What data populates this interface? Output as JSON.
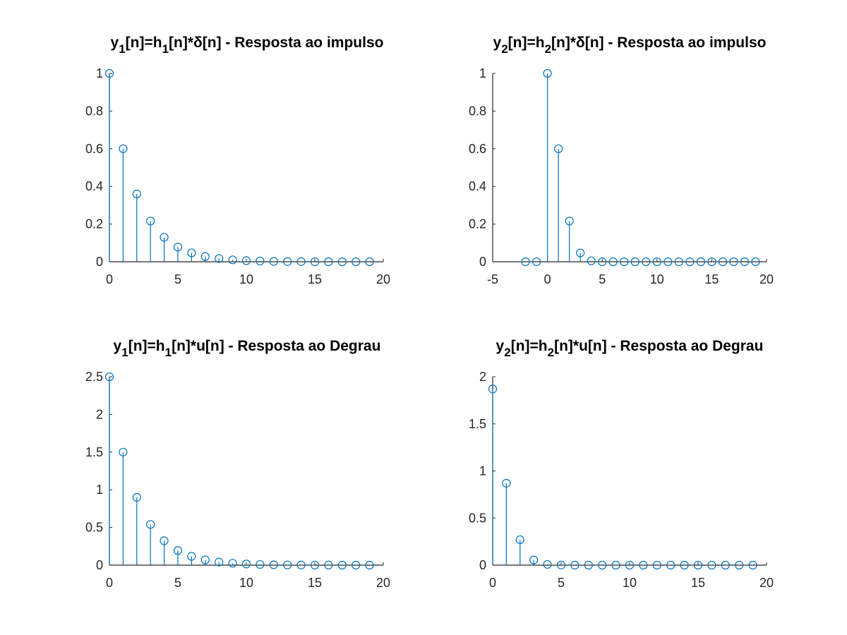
{
  "figure": {
    "background": "#ffffff",
    "stem_color": "#0072bd"
  },
  "chart_data": [
    {
      "type": "stem",
      "title_parts": [
        {
          "t": "y",
          "sub": false
        },
        {
          "t": "1",
          "sub": true
        },
        {
          "t": "[n]=h",
          "sub": false
        },
        {
          "t": "1",
          "sub": true
        },
        {
          "t": "[n]*δ[n] - Resposta ao impulso",
          "sub": false
        }
      ],
      "xlim": [
        0,
        20
      ],
      "ylim": [
        0,
        1
      ],
      "xticks": [
        0,
        5,
        10,
        15,
        20
      ],
      "yticks": [
        0,
        0.2,
        0.4,
        0.6,
        0.8,
        1
      ],
      "ytick_labels": [
        "0",
        "0.2",
        "0.4",
        "0.6",
        "0.8",
        "1"
      ],
      "x": [
        0,
        1,
        2,
        3,
        4,
        5,
        6,
        7,
        8,
        9,
        10,
        11,
        12,
        13,
        14,
        15,
        16,
        17,
        18,
        19
      ],
      "y": [
        1,
        0.6,
        0.36,
        0.216,
        0.13,
        0.078,
        0.047,
        0.028,
        0.017,
        0.01,
        0.006,
        0.004,
        0.002,
        0.001,
        0.001,
        0,
        0,
        0,
        0,
        0
      ]
    },
    {
      "type": "stem",
      "title_parts": [
        {
          "t": "y",
          "sub": false
        },
        {
          "t": "2",
          "sub": true
        },
        {
          "t": "[n]=h",
          "sub": false
        },
        {
          "t": "2",
          "sub": true
        },
        {
          "t": "[n]*δ[n] - Resposta ao impulso",
          "sub": false
        }
      ],
      "xlim": [
        -5,
        20
      ],
      "ylim": [
        0,
        1
      ],
      "xticks": [
        -5,
        0,
        5,
        10,
        15,
        20
      ],
      "yticks": [
        0,
        0.2,
        0.4,
        0.6,
        0.8,
        1
      ],
      "ytick_labels": [
        "0",
        "0.2",
        "0.4",
        "0.6",
        "0.8",
        "1"
      ],
      "x": [
        -2,
        -1,
        0,
        1,
        2,
        3,
        4,
        5,
        6,
        7,
        8,
        9,
        10,
        11,
        12,
        13,
        14,
        15,
        16,
        17,
        18,
        19
      ],
      "y": [
        0,
        0,
        1,
        0.6,
        0.216,
        0.047,
        0.005,
        0,
        0,
        0,
        0,
        0,
        0,
        0,
        0,
        0,
        0,
        0,
        0,
        0,
        0,
        0
      ]
    },
    {
      "type": "stem",
      "title_parts": [
        {
          "t": "y",
          "sub": false
        },
        {
          "t": "1",
          "sub": true
        },
        {
          "t": "[n]=h",
          "sub": false
        },
        {
          "t": "1",
          "sub": true
        },
        {
          "t": "[n]*u[n] - Resposta ao Degrau",
          "sub": false
        }
      ],
      "xlim": [
        0,
        20
      ],
      "ylim": [
        0,
        2.5
      ],
      "xticks": [
        0,
        5,
        10,
        15,
        20
      ],
      "yticks": [
        0,
        0.5,
        1,
        1.5,
        2,
        2.5
      ],
      "ytick_labels": [
        "0",
        "0.5",
        "1",
        "1.5",
        "2",
        "2.5"
      ],
      "x": [
        0,
        1,
        2,
        3,
        4,
        5,
        6,
        7,
        8,
        9,
        10,
        11,
        12,
        13,
        14,
        15,
        16,
        17,
        18,
        19
      ],
      "y": [
        2.5,
        1.5,
        0.9,
        0.54,
        0.324,
        0.194,
        0.117,
        0.07,
        0.042,
        0.025,
        0.015,
        0.009,
        0.005,
        0.003,
        0.002,
        0.001,
        0.001,
        0,
        0,
        0
      ]
    },
    {
      "type": "stem",
      "title_parts": [
        {
          "t": "y",
          "sub": false
        },
        {
          "t": "2",
          "sub": true
        },
        {
          "t": "[n]=h",
          "sub": false
        },
        {
          "t": "2",
          "sub": true
        },
        {
          "t": "[n]*u[n] - Resposta ao Degrau",
          "sub": false
        }
      ],
      "xlim": [
        0,
        20
      ],
      "ylim": [
        0,
        2
      ],
      "xticks": [
        0,
        5,
        10,
        15,
        20
      ],
      "yticks": [
        0,
        0.5,
        1,
        1.5,
        2
      ],
      "ytick_labels": [
        "0",
        "0.5",
        "1",
        "1.5",
        "2"
      ],
      "x": [
        0,
        1,
        2,
        3,
        4,
        5,
        6,
        7,
        8,
        9,
        10,
        11,
        12,
        13,
        14,
        15,
        16,
        17,
        18,
        19
      ],
      "y": [
        1.87,
        0.87,
        0.27,
        0.055,
        0.008,
        0.001,
        0,
        0,
        0,
        0,
        0,
        0,
        0,
        0,
        0,
        0,
        0,
        0,
        0,
        0
      ]
    }
  ]
}
